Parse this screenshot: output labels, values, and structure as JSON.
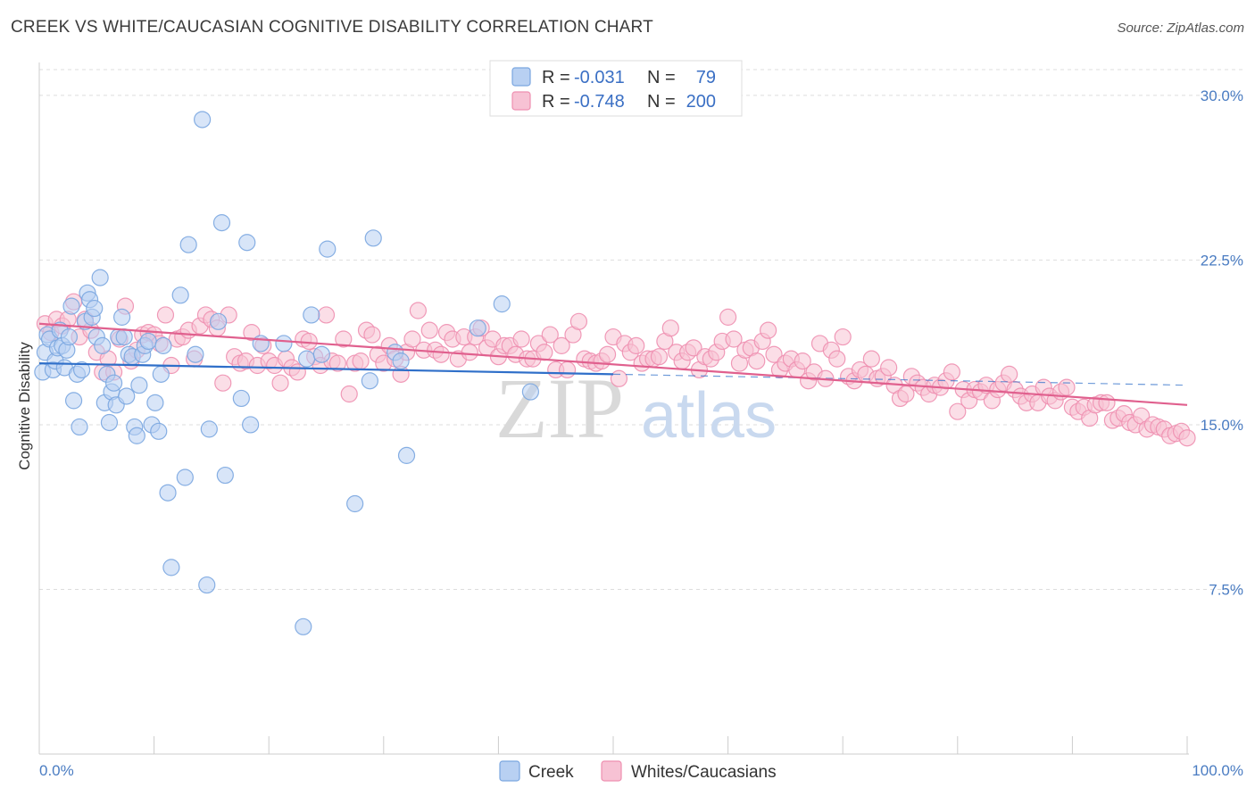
{
  "title": "CREEK VS WHITE/CAUCASIAN COGNITIVE DISABILITY CORRELATION CHART",
  "source": "Source: ZipAtlas.com",
  "watermark": {
    "part1": "ZIP",
    "part2": "atlas"
  },
  "colors": {
    "creek": "#7aa6e0",
    "creek_fill": "#b8d0f2",
    "creek_line": "#2f6fc9",
    "white": "#ee8fb0",
    "white_fill": "#f7c2d4",
    "white_line": "#e0608e",
    "axis_label": "#4a7cc2",
    "grid": "#dddddd"
  },
  "legend": {
    "rows": [
      {
        "r_label": "R =",
        "r_value": "-0.031",
        "n_label": "N =",
        "n_value": "79"
      },
      {
        "r_label": "R =",
        "r_value": "-0.748",
        "n_label": "N =",
        "n_value": "200"
      }
    ]
  },
  "bottom_legend": [
    "Creek",
    "Whites/Caucasians"
  ],
  "chart_data": {
    "type": "scatter",
    "xlabel": "",
    "ylabel": "Cognitive Disability",
    "xlim": [
      0,
      100
    ],
    "ylim": [
      0,
      31.5
    ],
    "x_tick_labels": [
      "0.0%",
      "100.0%"
    ],
    "y_ticks": [
      7.5,
      15.0,
      22.5,
      30.0
    ],
    "y_tick_labels": [
      "7.5%",
      "15.0%",
      "22.5%",
      "30.0%"
    ],
    "grid": "horizontal dashed",
    "series": [
      {
        "name": "Creek",
        "trend": {
          "x0": 0,
          "y0": 17.8,
          "x1": 50,
          "y1": 17.3,
          "dashed_to_x": 100,
          "dashed_to_y": 16.8
        },
        "points": [
          [
            0.3,
            17.4
          ],
          [
            0.5,
            18.3
          ],
          [
            0.7,
            19.1
          ],
          [
            0.9,
            18.9
          ],
          [
            1.2,
            17.5
          ],
          [
            1.4,
            17.9
          ],
          [
            1.6,
            18.5
          ],
          [
            1.8,
            19.3
          ],
          [
            2.0,
            18.6
          ],
          [
            2.2,
            17.6
          ],
          [
            2.4,
            18.4
          ],
          [
            2.6,
            19.0
          ],
          [
            2.8,
            20.4
          ],
          [
            3.0,
            16.1
          ],
          [
            3.3,
            17.3
          ],
          [
            3.5,
            14.9
          ],
          [
            3.7,
            17.5
          ],
          [
            4.0,
            19.7
          ],
          [
            4.2,
            21.0
          ],
          [
            4.4,
            20.7
          ],
          [
            4.6,
            19.9
          ],
          [
            4.8,
            20.3
          ],
          [
            5.0,
            19.0
          ],
          [
            5.3,
            21.7
          ],
          [
            5.5,
            18.6
          ],
          [
            5.7,
            16.0
          ],
          [
            5.9,
            17.3
          ],
          [
            6.1,
            15.1
          ],
          [
            6.3,
            16.5
          ],
          [
            6.5,
            16.9
          ],
          [
            6.7,
            15.9
          ],
          [
            6.9,
            19.0
          ],
          [
            7.2,
            19.9
          ],
          [
            7.4,
            19.0
          ],
          [
            7.6,
            16.3
          ],
          [
            7.8,
            18.2
          ],
          [
            8.1,
            18.1
          ],
          [
            8.3,
            14.9
          ],
          [
            8.5,
            14.5
          ],
          [
            8.7,
            16.8
          ],
          [
            9.0,
            18.2
          ],
          [
            9.2,
            18.6
          ],
          [
            9.5,
            18.8
          ],
          [
            9.8,
            15.0
          ],
          [
            10.1,
            16.0
          ],
          [
            10.4,
            14.7
          ],
          [
            10.6,
            17.3
          ],
          [
            10.8,
            18.6
          ],
          [
            11.2,
            11.9
          ],
          [
            11.5,
            8.5
          ],
          [
            12.3,
            20.9
          ],
          [
            12.7,
            12.6
          ],
          [
            13.0,
            23.2
          ],
          [
            13.6,
            18.2
          ],
          [
            14.2,
            28.9
          ],
          [
            14.6,
            7.7
          ],
          [
            14.8,
            14.8
          ],
          [
            15.6,
            19.7
          ],
          [
            15.9,
            24.2
          ],
          [
            16.2,
            12.7
          ],
          [
            17.6,
            16.2
          ],
          [
            18.1,
            23.3
          ],
          [
            18.4,
            15.0
          ],
          [
            19.3,
            18.7
          ],
          [
            21.3,
            18.7
          ],
          [
            23.0,
            5.8
          ],
          [
            23.3,
            18.0
          ],
          [
            23.7,
            20.0
          ],
          [
            24.6,
            18.2
          ],
          [
            25.1,
            23.0
          ],
          [
            27.5,
            11.4
          ],
          [
            28.8,
            17.0
          ],
          [
            29.1,
            23.5
          ],
          [
            31.0,
            18.3
          ],
          [
            31.5,
            17.9
          ],
          [
            32.0,
            13.6
          ],
          [
            38.2,
            19.4
          ],
          [
            40.3,
            20.5
          ],
          [
            42.8,
            16.5
          ]
        ]
      },
      {
        "name": "Whites/Caucasians",
        "trend": {
          "x0": 0,
          "y0": 19.6,
          "x1": 100,
          "y1": 15.9
        },
        "points": [
          [
            0.5,
            19.6
          ],
          [
            1.0,
            19.2
          ],
          [
            1.5,
            19.8
          ],
          [
            2.0,
            19.5
          ],
          [
            2.5,
            19.8
          ],
          [
            3.0,
            20.6
          ],
          [
            3.5,
            19.0
          ],
          [
            4.0,
            19.8
          ],
          [
            4.5,
            19.3
          ],
          [
            5.0,
            18.3
          ],
          [
            5.5,
            17.4
          ],
          [
            6.0,
            18.0
          ],
          [
            6.5,
            17.4
          ],
          [
            7.0,
            18.9
          ],
          [
            7.5,
            20.4
          ],
          [
            8.0,
            17.9
          ],
          [
            8.5,
            18.4
          ],
          [
            9.0,
            19.1
          ],
          [
            9.5,
            19.2
          ],
          [
            10.0,
            19.1
          ],
          [
            10.5,
            18.7
          ],
          [
            11.0,
            20.0
          ],
          [
            11.5,
            17.7
          ],
          [
            12.0,
            18.9
          ],
          [
            12.5,
            19.0
          ],
          [
            13.0,
            19.3
          ],
          [
            13.5,
            18.0
          ],
          [
            14.0,
            19.5
          ],
          [
            14.5,
            20.0
          ],
          [
            15.0,
            19.8
          ],
          [
            15.5,
            19.4
          ],
          [
            16.0,
            16.9
          ],
          [
            16.5,
            20.0
          ],
          [
            17.0,
            18.1
          ],
          [
            17.5,
            17.8
          ],
          [
            18.0,
            17.9
          ],
          [
            18.5,
            19.2
          ],
          [
            19.0,
            17.7
          ],
          [
            19.5,
            18.6
          ],
          [
            20.0,
            17.9
          ],
          [
            20.5,
            17.7
          ],
          [
            21.0,
            16.9
          ],
          [
            21.5,
            18.0
          ],
          [
            22.0,
            17.6
          ],
          [
            22.5,
            17.4
          ],
          [
            23.0,
            18.9
          ],
          [
            23.5,
            18.8
          ],
          [
            24.0,
            18.1
          ],
          [
            24.5,
            17.7
          ],
          [
            25.0,
            20.0
          ],
          [
            25.5,
            17.9
          ],
          [
            26.0,
            17.8
          ],
          [
            26.5,
            18.9
          ],
          [
            27.0,
            16.4
          ],
          [
            27.5,
            17.8
          ],
          [
            28.0,
            17.9
          ],
          [
            28.5,
            19.3
          ],
          [
            29.0,
            19.1
          ],
          [
            29.5,
            18.2
          ],
          [
            30.0,
            17.8
          ],
          [
            30.5,
            18.6
          ],
          [
            31.0,
            18.0
          ],
          [
            31.5,
            17.3
          ],
          [
            32.0,
            18.3
          ],
          [
            32.5,
            18.9
          ],
          [
            33.0,
            20.2
          ],
          [
            33.5,
            18.4
          ],
          [
            34.0,
            19.3
          ],
          [
            34.5,
            18.4
          ],
          [
            35.0,
            18.2
          ],
          [
            35.5,
            19.2
          ],
          [
            36.0,
            18.9
          ],
          [
            36.5,
            18.0
          ],
          [
            37.0,
            19.0
          ],
          [
            37.5,
            18.3
          ],
          [
            38.0,
            19.0
          ],
          [
            38.5,
            19.4
          ],
          [
            39.0,
            18.5
          ],
          [
            39.5,
            18.9
          ],
          [
            40.0,
            18.1
          ],
          [
            40.5,
            18.6
          ],
          [
            41.0,
            18.6
          ],
          [
            41.5,
            18.2
          ],
          [
            42.0,
            18.9
          ],
          [
            42.5,
            18.0
          ],
          [
            43.0,
            18.0
          ],
          [
            43.5,
            18.7
          ],
          [
            44.0,
            18.3
          ],
          [
            44.5,
            19.1
          ],
          [
            45.0,
            17.5
          ],
          [
            45.5,
            18.6
          ],
          [
            46.0,
            17.5
          ],
          [
            46.5,
            19.1
          ],
          [
            47.0,
            19.7
          ],
          [
            47.5,
            18.0
          ],
          [
            48.0,
            17.9
          ],
          [
            48.5,
            17.8
          ],
          [
            49.0,
            17.9
          ],
          [
            49.5,
            18.2
          ],
          [
            50.0,
            19.0
          ],
          [
            50.5,
            17.1
          ],
          [
            51.0,
            18.7
          ],
          [
            51.5,
            18.3
          ],
          [
            52.0,
            18.6
          ],
          [
            52.5,
            17.8
          ],
          [
            53.0,
            18.0
          ],
          [
            53.5,
            18.0
          ],
          [
            54.0,
            18.1
          ],
          [
            54.5,
            18.8
          ],
          [
            55.0,
            19.4
          ],
          [
            55.5,
            18.3
          ],
          [
            56.0,
            17.9
          ],
          [
            56.5,
            18.3
          ],
          [
            57.0,
            18.5
          ],
          [
            57.5,
            17.5
          ],
          [
            58.0,
            18.1
          ],
          [
            58.5,
            18.0
          ],
          [
            59.0,
            18.3
          ],
          [
            59.5,
            18.8
          ],
          [
            60.0,
            19.9
          ],
          [
            60.5,
            18.9
          ],
          [
            61.0,
            17.8
          ],
          [
            61.5,
            18.4
          ],
          [
            62.0,
            18.5
          ],
          [
            62.5,
            17.9
          ],
          [
            63.0,
            18.8
          ],
          [
            63.5,
            19.3
          ],
          [
            64.0,
            18.2
          ],
          [
            64.5,
            17.5
          ],
          [
            65.0,
            17.8
          ],
          [
            65.5,
            18.0
          ],
          [
            66.0,
            17.5
          ],
          [
            66.5,
            17.9
          ],
          [
            67.0,
            17.0
          ],
          [
            67.5,
            17.4
          ],
          [
            68.0,
            18.7
          ],
          [
            68.5,
            17.1
          ],
          [
            69.0,
            18.4
          ],
          [
            69.5,
            18.0
          ],
          [
            70.0,
            19.0
          ],
          [
            70.5,
            17.2
          ],
          [
            71.0,
            17.0
          ],
          [
            71.5,
            17.5
          ],
          [
            72.0,
            17.3
          ],
          [
            72.5,
            18.0
          ],
          [
            73.0,
            17.1
          ],
          [
            73.5,
            17.2
          ],
          [
            74.0,
            17.6
          ],
          [
            74.5,
            16.8
          ],
          [
            75.0,
            16.2
          ],
          [
            75.5,
            16.4
          ],
          [
            76.0,
            17.2
          ],
          [
            76.5,
            16.9
          ],
          [
            77.0,
            16.7
          ],
          [
            77.5,
            16.4
          ],
          [
            78.0,
            16.8
          ],
          [
            78.5,
            16.7
          ],
          [
            79.0,
            17.0
          ],
          [
            79.5,
            17.4
          ],
          [
            80.0,
            15.6
          ],
          [
            80.5,
            16.6
          ],
          [
            81.0,
            16.1
          ],
          [
            81.5,
            16.6
          ],
          [
            82.0,
            16.5
          ],
          [
            82.5,
            16.8
          ],
          [
            83.0,
            16.1
          ],
          [
            83.5,
            16.6
          ],
          [
            84.0,
            16.9
          ],
          [
            84.5,
            17.3
          ],
          [
            85.0,
            16.6
          ],
          [
            85.5,
            16.3
          ],
          [
            86.0,
            16.0
          ],
          [
            86.5,
            16.4
          ],
          [
            87.0,
            16.0
          ],
          [
            87.5,
            16.7
          ],
          [
            88.0,
            16.3
          ],
          [
            88.5,
            16.1
          ],
          [
            89.0,
            16.5
          ],
          [
            89.5,
            16.7
          ],
          [
            90.0,
            15.8
          ],
          [
            90.5,
            15.6
          ],
          [
            91.0,
            15.8
          ],
          [
            91.5,
            15.3
          ],
          [
            92.0,
            15.9
          ],
          [
            92.5,
            16.0
          ],
          [
            93.0,
            16.0
          ],
          [
            93.5,
            15.2
          ],
          [
            94.0,
            15.3
          ],
          [
            94.5,
            15.5
          ],
          [
            95.0,
            15.1
          ],
          [
            95.5,
            15.0
          ],
          [
            96.0,
            15.4
          ],
          [
            96.5,
            14.8
          ],
          [
            97.0,
            15.0
          ],
          [
            97.5,
            14.9
          ],
          [
            98.0,
            14.8
          ],
          [
            98.5,
            14.5
          ],
          [
            99.0,
            14.6
          ],
          [
            99.5,
            14.7
          ],
          [
            100.0,
            14.4
          ]
        ]
      }
    ]
  }
}
